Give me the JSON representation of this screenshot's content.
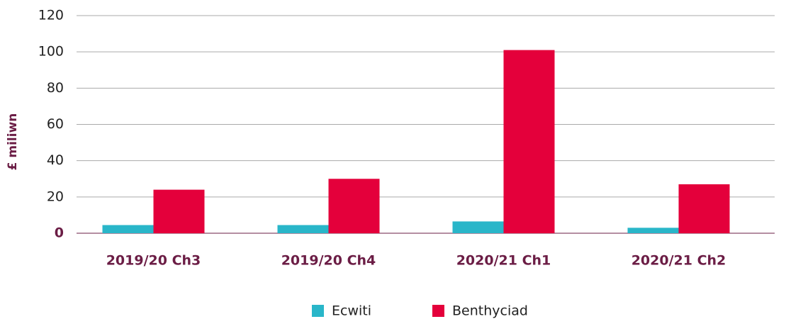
{
  "chart_data": {
    "type": "bar",
    "y_label": "£ miliwn",
    "categories": [
      "2019/20 Ch3",
      "2019/20 Ch4",
      "2020/21 Ch1",
      "2020/21 Ch2"
    ],
    "series": [
      {
        "name": "Ecwiti",
        "color": "#29b6c9",
        "values": [
          4.5,
          4.5,
          6.5,
          3
        ]
      },
      {
        "name": "Benthyciad",
        "color": "#e4003b",
        "values": [
          24,
          30,
          101,
          27
        ]
      }
    ],
    "ylim": [
      0,
      120
    ],
    "yticks": [
      0,
      20,
      40,
      60,
      80,
      100,
      120
    ],
    "grid": true
  }
}
